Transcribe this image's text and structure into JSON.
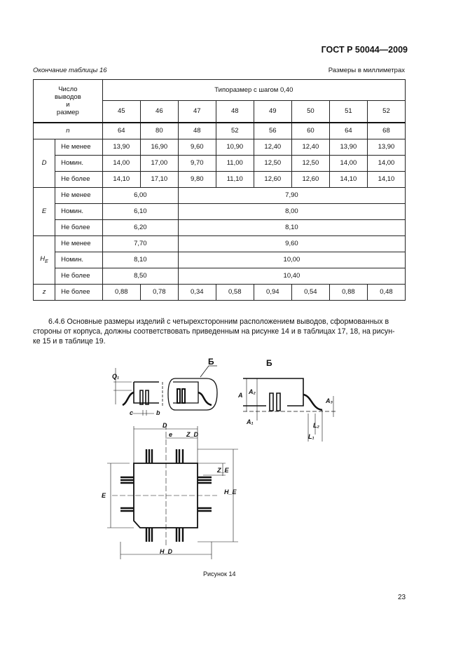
{
  "header": {
    "doc_id": "ГОСТ Р 50044—2009"
  },
  "table": {
    "caption_left": "Окончание таблицы 16",
    "caption_right": "Размеры в миллиметрах",
    "corner_header": "Число выводов и размер",
    "group_header": "Типоразмер с шагом 0,40",
    "sizes": [
      "45",
      "46",
      "47",
      "48",
      "49",
      "50",
      "51",
      "52"
    ],
    "n_label": "n",
    "n_values": [
      "64",
      "80",
      "48",
      "52",
      "56",
      "60",
      "64",
      "68"
    ],
    "row_labels": {
      "min": "Не менее",
      "nom": "Номин.",
      "max": "Не более"
    },
    "D": {
      "label": "D",
      "min": [
        "13,90",
        "16,90",
        "9,60",
        "10,90",
        "12,40",
        "12,40",
        "13,90",
        "13,90"
      ],
      "nom": [
        "14,00",
        "17,00",
        "9,70",
        "11,00",
        "12,50",
        "12,50",
        "14,00",
        "14,00"
      ],
      "max": [
        "14,10",
        "17,10",
        "9,80",
        "11,10",
        "12,60",
        "12,60",
        "14,10",
        "14,10"
      ]
    },
    "E": {
      "label": "E",
      "min": [
        "6,00",
        "7,90"
      ],
      "nom": [
        "6,10",
        "8,00"
      ],
      "max": [
        "6,20",
        "8,10"
      ]
    },
    "HE": {
      "label": "H",
      "sub": "E",
      "min": [
        "7,70",
        "9,60"
      ],
      "nom": [
        "8,10",
        "10,00"
      ],
      "max": [
        "8,50",
        "10,40"
      ]
    },
    "z": {
      "label": "z",
      "max": [
        "0,88",
        "0,78",
        "0,34",
        "0,58",
        "0,94",
        "0,54",
        "0,88",
        "0,48"
      ]
    }
  },
  "paragraph": {
    "line1": "6.4.6 Основные размеры изделий с четырехсторонним расположением выводов, сформованных в",
    "line2": "стороны от корпуса, должны соответствовать приведенным на рисунке 14 и в таблицах 17, 18, на рисун-",
    "line3": "ке 15 и в таблице 19."
  },
  "figure": {
    "caption": "Рисунок 14",
    "labels": {
      "B1": "Б",
      "B2": "Б",
      "Q1": "Q₁",
      "c": "c",
      "b": "b",
      "D": "D",
      "e": "e",
      "ZD": "Z_D",
      "ZE": "Z_E",
      "E": "E",
      "HE": "H_E",
      "HD": "H_D",
      "A": "A",
      "A2": "A₂",
      "A1": "A₁",
      "A3": "A₃",
      "L2": "L₂",
      "L1": "L₁"
    }
  },
  "page_number": "23"
}
